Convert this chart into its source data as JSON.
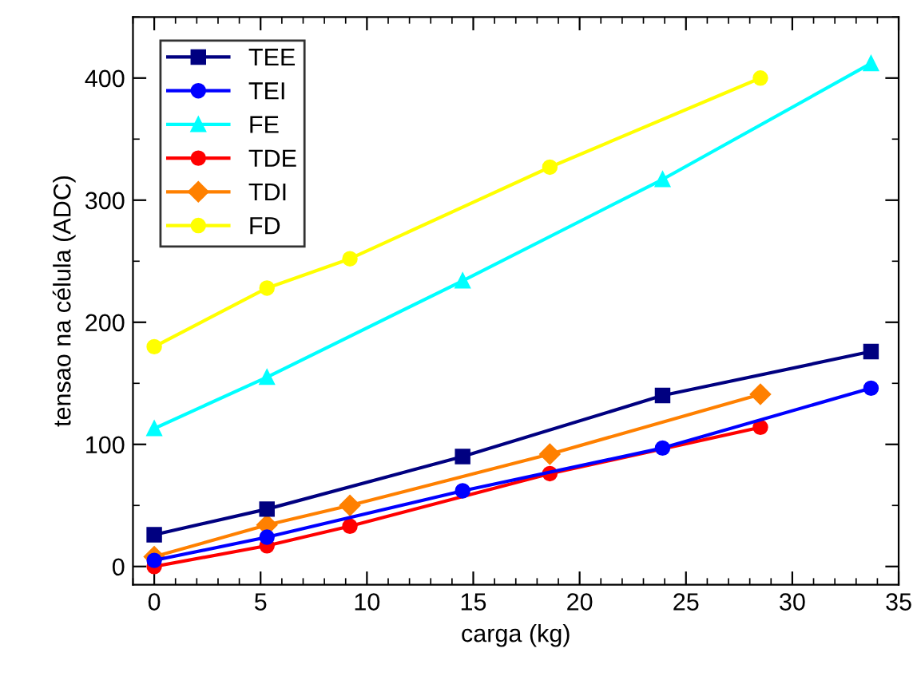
{
  "chart_data": {
    "type": "line",
    "xlabel": "carga (kg)",
    "ylabel": "tensao na célula (ADC)",
    "xlim": [
      -1,
      35
    ],
    "ylim": [
      -15,
      450
    ],
    "xticks": [
      0,
      5,
      10,
      15,
      20,
      25,
      30,
      35
    ],
    "yticks": [
      0,
      100,
      200,
      300,
      400
    ],
    "grid": false,
    "legend": "top left",
    "line_style": "solid",
    "series": [
      {
        "name": "TEE",
        "color": "#000080",
        "marker": "square",
        "x": [
          0,
          5.3,
          14.5,
          23.9,
          33.7
        ],
        "values": [
          26,
          47,
          90,
          140,
          176
        ]
      },
      {
        "name": "TEI",
        "color": "#0000ff",
        "marker": "circle",
        "x": [
          0,
          5.3,
          14.5,
          23.9,
          33.7
        ],
        "values": [
          5,
          24,
          62,
          97,
          146
        ]
      },
      {
        "name": "FE",
        "color": "#00ffff",
        "marker": "triangle",
        "x": [
          0,
          5.3,
          14.5,
          23.9,
          33.7
        ],
        "values": [
          113,
          155,
          234,
          317,
          412
        ]
      },
      {
        "name": "TDE",
        "color": "#ff0000",
        "marker": "circle",
        "x": [
          0,
          5.3,
          9.2,
          18.6,
          28.5
        ],
        "values": [
          0,
          17,
          33,
          76,
          114
        ]
      },
      {
        "name": "TDI",
        "color": "#ff8000",
        "marker": "diamond",
        "x": [
          0,
          5.3,
          9.2,
          18.6,
          28.5
        ],
        "values": [
          8,
          34,
          50,
          92,
          141
        ]
      },
      {
        "name": "FD",
        "color": "#ffff00",
        "marker": "circle",
        "x": [
          0,
          5.3,
          9.2,
          18.6,
          28.5
        ],
        "values": [
          180,
          228,
          252,
          327,
          400
        ]
      }
    ]
  }
}
